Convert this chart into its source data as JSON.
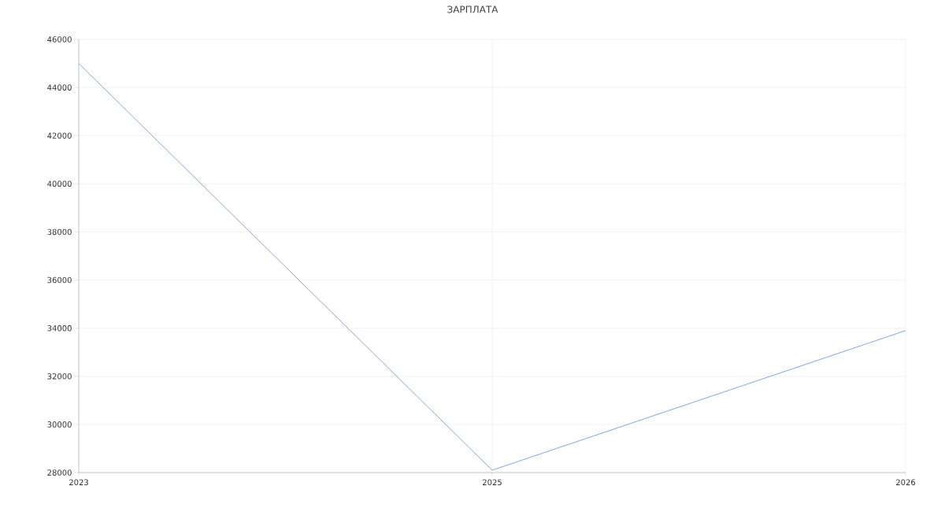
{
  "chart_data": {
    "type": "line",
    "title": "ЗАРПЛАТА",
    "categories": [
      "2023",
      "2025",
      "2026"
    ],
    "series": [
      {
        "color": "#6f9cf0",
        "values": [
          45000,
          28100,
          33900
        ]
      }
    ],
    "ylim": [
      28000,
      46000
    ],
    "yticks": [
      28000,
      30000,
      32000,
      34000,
      36000,
      38000,
      40000,
      42000,
      44000,
      46000
    ],
    "grid": true
  }
}
